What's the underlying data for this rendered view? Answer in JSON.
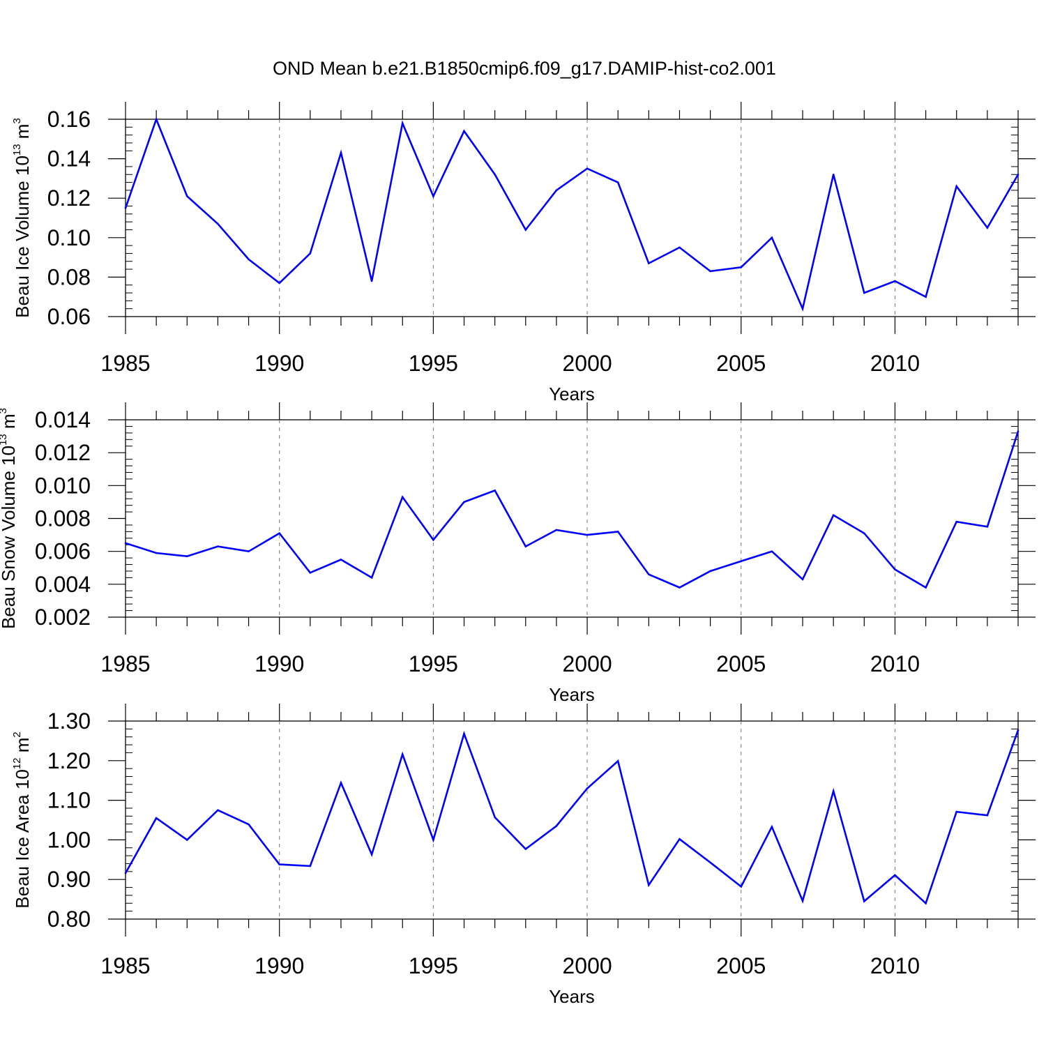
{
  "figure": {
    "title": "OND Mean b.e21.B1850cmip6.f09_g17.DAMIP-hist-co2.001",
    "line_color": "#0000ff",
    "grid_color": "#777777"
  },
  "chart_data": [
    {
      "type": "line",
      "xlabel": "Years",
      "ylabel_main": "Beau Ice Volume 10",
      "ylabel_sup": "13",
      "ylabel_unit": " m",
      "ylabel_unit_sup": "3",
      "xlim": [
        1985,
        2014
      ],
      "ylim": [
        0.06,
        0.16
      ],
      "yticks": [
        0.06,
        0.08,
        0.1,
        0.12,
        0.14,
        0.16
      ],
      "ytick_labels": [
        "0.06",
        "0.08",
        "0.10",
        "0.12",
        "0.14",
        "0.16"
      ],
      "xticks": [
        1985,
        1990,
        1995,
        2000,
        2005,
        2010
      ],
      "xtick_labels": [
        "1985",
        "1990",
        "1995",
        "2000",
        "2005",
        "2010"
      ],
      "x": [
        1985,
        1986,
        1987,
        1988,
        1989,
        1990,
        1991,
        1992,
        1993,
        1994,
        1995,
        1996,
        1997,
        1998,
        1999,
        2000,
        2001,
        2002,
        2003,
        2004,
        2005,
        2006,
        2007,
        2008,
        2009,
        2010,
        2011,
        2012,
        2013,
        2014
      ],
      "y": [
        0.115,
        0.16,
        0.121,
        0.107,
        0.089,
        0.077,
        0.092,
        0.143,
        0.078,
        0.158,
        0.121,
        0.154,
        0.132,
        0.104,
        0.124,
        0.135,
        0.128,
        0.087,
        0.095,
        0.083,
        0.085,
        0.1,
        0.064,
        0.132,
        0.072,
        0.078,
        0.07,
        0.126,
        0.105,
        0.132
      ]
    },
    {
      "type": "line",
      "xlabel": "Years",
      "ylabel_main": "Beau Snow Volume 10",
      "ylabel_sup": "13",
      "ylabel_unit": " m",
      "ylabel_unit_sup": "3",
      "xlim": [
        1985,
        2014
      ],
      "ylim": [
        0.002,
        0.014
      ],
      "yticks": [
        0.002,
        0.004,
        0.006,
        0.008,
        0.01,
        0.012,
        0.014
      ],
      "ytick_labels": [
        "0.002",
        "0.004",
        "0.006",
        "0.008",
        "0.010",
        "0.012",
        "0.014"
      ],
      "xticks": [
        1985,
        1990,
        1995,
        2000,
        2005,
        2010
      ],
      "xtick_labels": [
        "1985",
        "1990",
        "1995",
        "2000",
        "2005",
        "2010"
      ],
      "x": [
        1985,
        1986,
        1987,
        1988,
        1989,
        1990,
        1991,
        1992,
        1993,
        1994,
        1995,
        1996,
        1997,
        1998,
        1999,
        2000,
        2001,
        2002,
        2003,
        2004,
        2005,
        2006,
        2007,
        2008,
        2009,
        2010,
        2011,
        2012,
        2013,
        2014
      ],
      "y": [
        0.0065,
        0.0059,
        0.0057,
        0.0063,
        0.006,
        0.0071,
        0.0047,
        0.0055,
        0.0044,
        0.0093,
        0.0067,
        0.009,
        0.0097,
        0.0063,
        0.0073,
        0.007,
        0.0072,
        0.0046,
        0.0038,
        0.0048,
        0.0054,
        0.006,
        0.0043,
        0.0082,
        0.0071,
        0.0049,
        0.0038,
        0.0078,
        0.0075,
        0.0133
      ]
    },
    {
      "type": "line",
      "xlabel": "Years",
      "ylabel_main": "Beau Ice Area 10",
      "ylabel_sup": "12",
      "ylabel_unit": " m",
      "ylabel_unit_sup": "2",
      "xlim": [
        1985,
        2014
      ],
      "ylim": [
        0.8,
        1.3
      ],
      "yticks": [
        0.8,
        0.9,
        1.0,
        1.1,
        1.2,
        1.3
      ],
      "ytick_labels": [
        "0.80",
        "0.90",
        "1.00",
        "1.10",
        "1.20",
        "1.30"
      ],
      "xticks": [
        1985,
        1990,
        1995,
        2000,
        2005,
        2010
      ],
      "xtick_labels": [
        "1985",
        "1990",
        "1995",
        "2000",
        "2005",
        "2010"
      ],
      "x": [
        1985,
        1986,
        1987,
        1988,
        1989,
        1990,
        1991,
        1992,
        1993,
        1994,
        1995,
        1996,
        1997,
        1998,
        1999,
        2000,
        2001,
        2002,
        2003,
        2004,
        2005,
        2006,
        2007,
        2008,
        2009,
        2010,
        2011,
        2012,
        2013,
        2014
      ],
      "y": [
        0.916,
        1.055,
        1.0,
        1.075,
        1.039,
        0.938,
        0.934,
        1.144,
        0.963,
        1.216,
        1.0,
        1.268,
        1.057,
        0.977,
        1.035,
        1.13,
        1.199,
        0.886,
        1.002,
        0.943,
        0.882,
        1.033,
        0.846,
        1.123,
        0.845,
        0.911,
        0.84,
        1.071,
        1.062,
        1.277
      ]
    }
  ]
}
